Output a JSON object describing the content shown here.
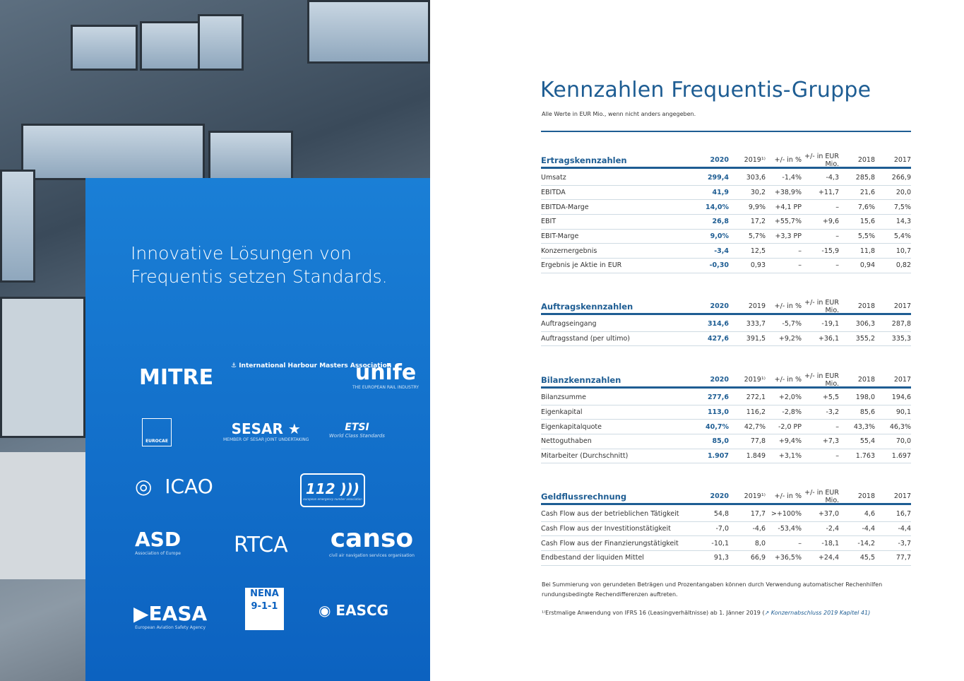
{
  "left": {
    "tagline_line1": "Innovative Lösungen von",
    "tagline_line2": "Frequentis setzen Standards.",
    "logos": [
      "MITRE",
      "International Harbour Masters Association",
      "unife",
      "THE EUROPEAN RAIL INDUSTRY",
      "EUROCAE",
      "SESAR",
      "MEMBER OF SESAR JOINT UNDERTAKING",
      "ETSI",
      "World Class Standards",
      "ICAO",
      "112",
      "european emergency number association",
      "ASD",
      "Association of Europe",
      "RTCA",
      "canso",
      "civil air navigation services organisation",
      "NENA",
      "9-1-1",
      "EASA",
      "European Aviation Safety Agency",
      "EASCG"
    ]
  },
  "title": "Kennzahlen Frequentis-Gruppe",
  "subtitle": "Alle Werte in EUR Mio., wenn nicht anders angegeben.",
  "sections": [
    {
      "name": "Ertragskennzahlen",
      "cols": [
        "2020",
        "2019¹⁾",
        "+/- in %",
        "+/- in EUR Mio.",
        "2018",
        "2017"
      ],
      "blue2020": true,
      "rows": [
        [
          "Umsatz",
          "299,4",
          "303,6",
          "-1,4%",
          "-4,3",
          "285,8",
          "266,9"
        ],
        [
          "EBITDA",
          "41,9",
          "30,2",
          "+38,9%",
          "+11,7",
          "21,6",
          "20,0"
        ],
        [
          "EBITDA-Marge",
          "14,0%",
          "9,9%",
          "+4,1 PP",
          "–",
          "7,6%",
          "7,5%"
        ],
        [
          "EBIT",
          "26,8",
          "17,2",
          "+55,7%",
          "+9,6",
          "15,6",
          "14,3"
        ],
        [
          "EBIT-Marge",
          "9,0%",
          "5,7%",
          "+3,3 PP",
          "–",
          "5,5%",
          "5,4%"
        ],
        [
          "Konzernergebnis",
          "-3,4",
          "12,5",
          "–",
          "-15,9",
          "11,8",
          "10,7"
        ],
        [
          "Ergebnis je Aktie in EUR",
          "-0,30",
          "0,93",
          "–",
          "–",
          "0,94",
          "0,82"
        ]
      ]
    },
    {
      "name": "Auftragskennzahlen",
      "cols": [
        "2020",
        "2019",
        "+/- in %",
        "+/- in EUR Mio.",
        "2018",
        "2017"
      ],
      "blue2020": true,
      "rows": [
        [
          "Auftragseingang",
          "314,6",
          "333,7",
          "-5,7%",
          "-19,1",
          "306,3",
          "287,8"
        ],
        [
          "Auftragsstand (per ultimo)",
          "427,6",
          "391,5",
          "+9,2%",
          "+36,1",
          "355,2",
          "335,3"
        ]
      ]
    },
    {
      "name": "Bilanzkennzahlen",
      "cols": [
        "2020",
        "2019¹⁾",
        "+/- in %",
        "+/- in EUR Mio.",
        "2018",
        "2017"
      ],
      "blue2020": true,
      "rows": [
        [
          "Bilanzsumme",
          "277,6",
          "272,1",
          "+2,0%",
          "+5,5",
          "198,0",
          "194,6"
        ],
        [
          "Eigenkapital",
          "113,0",
          "116,2",
          "-2,8%",
          "-3,2",
          "85,6",
          "90,1"
        ],
        [
          "Eigenkapitalquote",
          "40,7%",
          "42,7%",
          "-2,0 PP",
          "–",
          "43,3%",
          "46,3%"
        ],
        [
          "Nettoguthaben",
          "85,0",
          "77,8",
          "+9,4%",
          "+7,3",
          "55,4",
          "70,0"
        ],
        [
          "Mitarbeiter (Durchschnitt)",
          "1.907",
          "1.849",
          "+3,1%",
          "–",
          "1.763",
          "1.697"
        ]
      ]
    },
    {
      "name": "Geldflussrechnung",
      "cols": [
        "2020",
        "2019¹⁾",
        "+/- in %",
        "+/- in EUR Mio.",
        "2018",
        "2017"
      ],
      "blue2020": false,
      "rows": [
        [
          "Cash Flow aus der betrieblichen Tätigkeit",
          "54,8",
          "17,7",
          ">+100%",
          "+37,0",
          "4,6",
          "16,7"
        ],
        [
          "Cash Flow aus der Investitionstätigkeit",
          "-7,0",
          "-4,6",
          "-53,4%",
          "-2,4",
          "-4,4",
          "-4,4"
        ],
        [
          "Cash Flow aus der Finanzierungstätigkeit",
          "-10,1",
          "8,0",
          "–",
          "-18,1",
          "-14,2",
          "-3,7"
        ],
        [
          "Endbestand der liquiden Mittel",
          "91,3",
          "66,9",
          "+36,5%",
          "+24,4",
          "45,5",
          "77,7"
        ]
      ]
    }
  ],
  "note": "Bei Summierung von gerundeten Beträgen und Prozentangaben können durch Verwendung automatischer Rechenhilfen rundungsbedingte Rechendifferenzen auftreten.",
  "footnote_text": "¹⁾Erstmalige Anwendung von IFRS 16 (Leasingverhältnisse) ab 1. Jänner 2019 (",
  "footnote_link": "↗ Konzernabschluss 2019 Kapitel 41)"
}
